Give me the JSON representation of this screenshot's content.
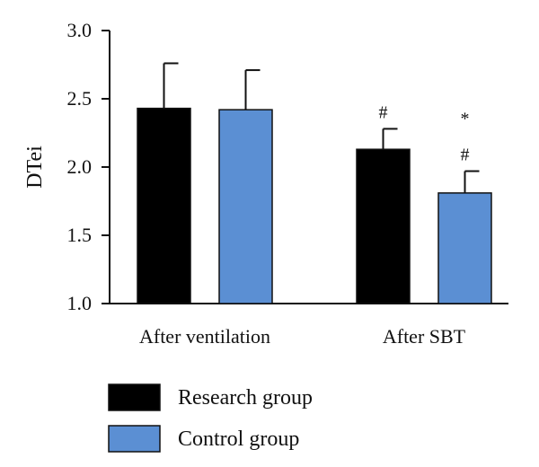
{
  "chart_data": {
    "type": "bar",
    "ylabel": "DTei",
    "xlabel": "",
    "ylim": [
      1.0,
      3.0
    ],
    "yticks": [
      "1.0",
      "1.5",
      "2.0",
      "2.5",
      "3.0"
    ],
    "categories": [
      "After ventilation",
      "After SBT"
    ],
    "series": [
      {
        "name": "Research group",
        "color": "#000000",
        "values": [
          2.43,
          2.13
        ],
        "errors": [
          0.33,
          0.15
        ]
      },
      {
        "name": "Control group",
        "color": "#5b8fd3",
        "values": [
          2.42,
          1.81
        ],
        "errors": [
          0.29,
          0.16
        ]
      }
    ],
    "annotations": [
      {
        "category": "After SBT",
        "series": "Research group",
        "marks": [
          "#"
        ]
      },
      {
        "category": "After SBT",
        "series": "Control group",
        "marks": [
          "#",
          "*"
        ]
      }
    ],
    "grid": false,
    "legend": "bottom-left"
  }
}
